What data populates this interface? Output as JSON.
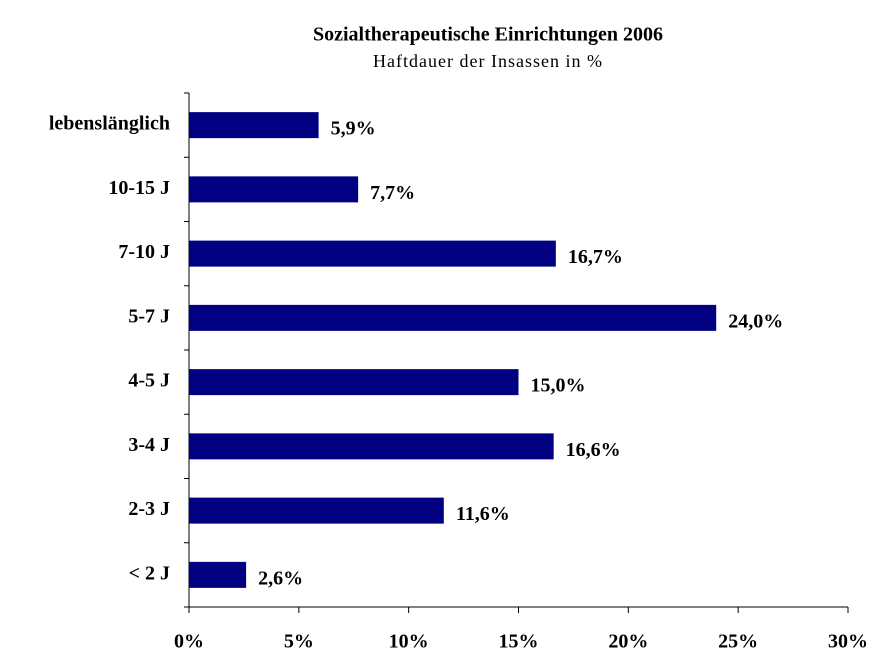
{
  "chart_data": {
    "type": "hbar",
    "title": "Sozialtherapeutische Einrichtungen 2006",
    "subtitle": "Haftdauer der Insassen in %",
    "categories": [
      "lebenslänglich",
      "10-15 J",
      "7-10 J",
      "5-7 J",
      "4-5 J",
      "3-4 J",
      "2-3 J",
      "< 2 J"
    ],
    "values": [
      5.9,
      7.7,
      16.7,
      24.0,
      15.0,
      16.6,
      11.6,
      2.6
    ],
    "value_labels": [
      "5,9%",
      "7,7%",
      "16,7%",
      "24,0%",
      "15,0%",
      "16,6%",
      "11,6%",
      "2,6%"
    ],
    "color": "#000080",
    "xlim": [
      0,
      30
    ],
    "xticks": [
      {
        "value": 0,
        "label": "0%"
      },
      {
        "value": 5,
        "label": "5%"
      },
      {
        "value": 10,
        "label": "10%"
      },
      {
        "value": 15,
        "label": "15%"
      },
      {
        "value": 20,
        "label": "20%"
      },
      {
        "value": 25,
        "label": "25%"
      },
      {
        "value": 30,
        "label": "30%"
      }
    ],
    "grid": false
  }
}
